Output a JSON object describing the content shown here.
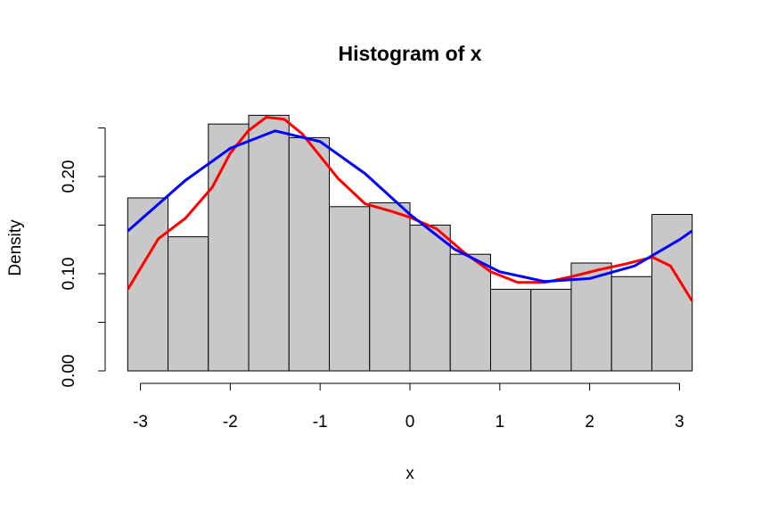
{
  "chart_data": {
    "type": "histogram",
    "title": "Histogram of x",
    "x_label": "x",
    "y_label": "Density",
    "bins": [
      -3.14159,
      -2.69279,
      -2.24399,
      -1.7952,
      -1.3464,
      -0.8976,
      -0.4488,
      0,
      0.4488,
      0.8976,
      1.3464,
      1.7952,
      2.24399,
      2.69279,
      3.14159
    ],
    "values": [
      0.178,
      0.138,
      0.254,
      0.263,
      0.24,
      0.169,
      0.173,
      0.15,
      0.12,
      0.084,
      0.084,
      0.111,
      0.097,
      0.161
    ],
    "color": "#c8c8c8",
    "xlim": [
      -3.14159,
      3.14159
    ],
    "ylim": [
      0,
      0.25
    ],
    "xticks": [
      -3,
      -2,
      -1,
      0,
      1,
      2,
      3
    ],
    "yticks": [
      {
        "value": 0,
        "label": "0.00"
      },
      {
        "value": 0.1,
        "label": "0.10"
      },
      {
        "value": 0.2,
        "label": "0.20"
      }
    ],
    "yminorticks": [
      0.05,
      0.15,
      0.25
    ],
    "curves": [
      {
        "color": "#ff0000",
        "x": [
          -3.14,
          -2.8,
          -2.5,
          -2.2,
          -2,
          -1.8,
          -1.6,
          -1.4,
          -1.2,
          -1,
          -0.8,
          -0.5,
          -0.2,
          0,
          0.3,
          0.6,
          0.9,
          1.2,
          1.5,
          1.8,
          2.1,
          2.4,
          2.7,
          2.9,
          3.14
        ],
        "values": [
          0.084,
          0.136,
          0.157,
          0.189,
          0.224,
          0.247,
          0.261,
          0.259,
          0.244,
          0.221,
          0.198,
          0.172,
          0.164,
          0.158,
          0.146,
          0.122,
          0.102,
          0.091,
          0.091,
          0.097,
          0.104,
          0.11,
          0.117,
          0.108,
          0.072
        ]
      },
      {
        "color": "#0000ff",
        "x": [
          -3.14,
          -2.5,
          -2,
          -1.5,
          -1,
          -0.5,
          0,
          0.5,
          1,
          1.5,
          2,
          2.5,
          3,
          3.14
        ],
        "values": [
          0.144,
          0.196,
          0.229,
          0.247,
          0.236,
          0.203,
          0.161,
          0.125,
          0.102,
          0.092,
          0.095,
          0.108,
          0.135,
          0.144
        ]
      }
    ]
  }
}
